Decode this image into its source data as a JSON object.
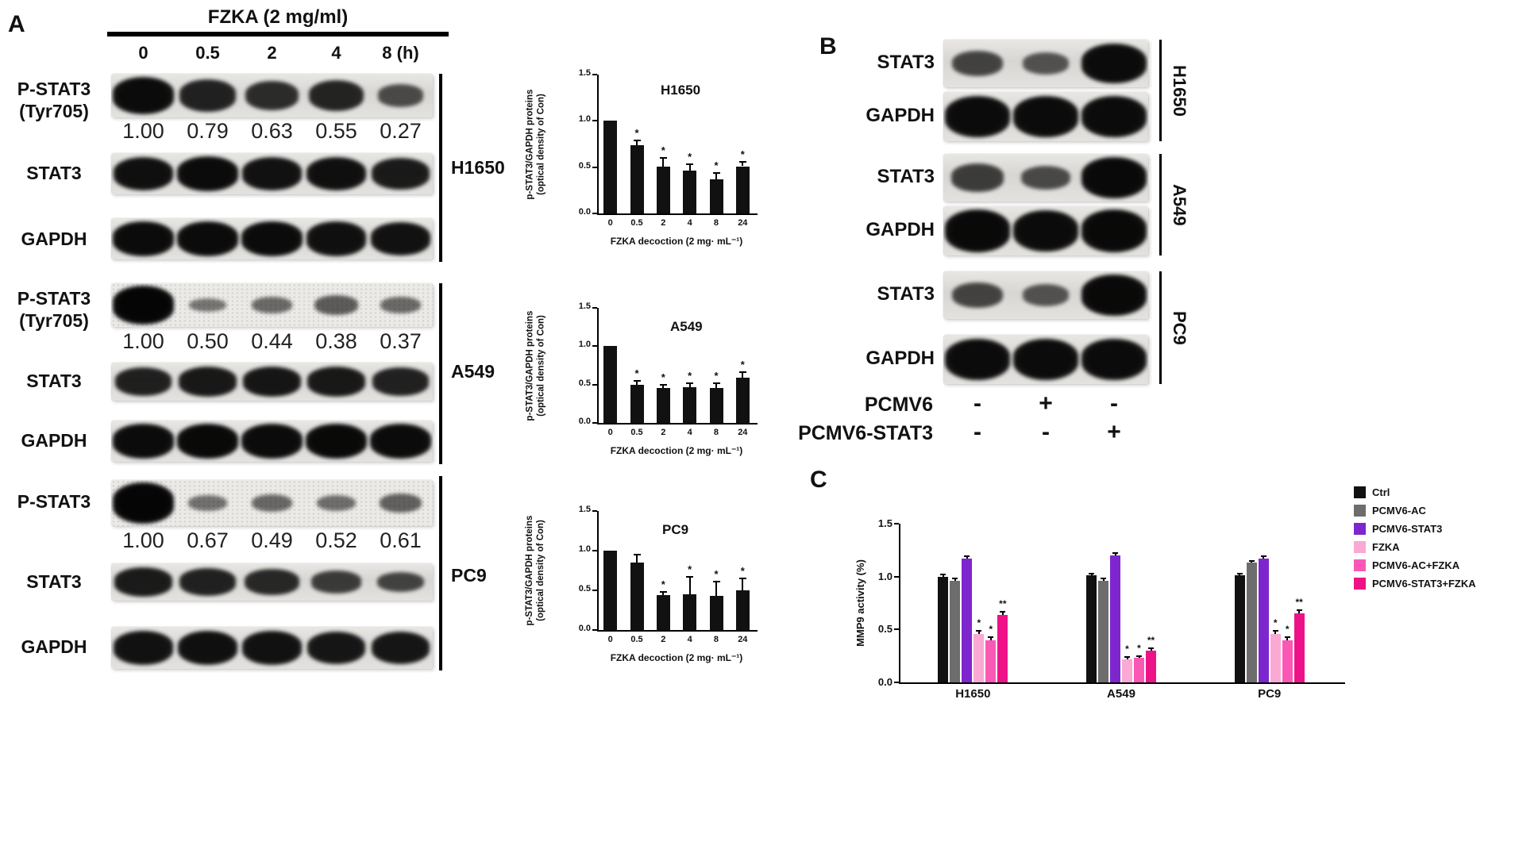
{
  "panels": {
    "a_label": "A",
    "b_label": "B",
    "c_label": "C"
  },
  "panelA": {
    "treatment_title": "FZKA (2 mg/ml)",
    "timepoints": [
      "0",
      "0.5",
      "2",
      "4",
      "8 (h)"
    ],
    "groups": [
      {
        "cell_line": "H1650",
        "pstat3_label_lines": [
          "P-STAT3",
          "(Tyr705)"
        ],
        "pstat3_bands": [
          0.95,
          0.8,
          0.72,
          0.78,
          0.5
        ],
        "pstat3_speckle": false,
        "densities": [
          "1.00",
          "0.79",
          "0.63",
          "0.55",
          "0.27"
        ],
        "stat3_label": "STAT3",
        "stat3_bands": [
          0.92,
          0.95,
          0.9,
          0.92,
          0.85
        ],
        "gapdh_label": "GAPDH",
        "gapdh_bands": [
          0.95,
          0.96,
          0.95,
          0.93,
          0.9
        ]
      },
      {
        "cell_line": "A549",
        "pstat3_label_lines": [
          "P-STAT3",
          "(Tyr705)"
        ],
        "pstat3_bands": [
          1.0,
          0.25,
          0.33,
          0.42,
          0.33
        ],
        "pstat3_speckle": true,
        "densities": [
          "1.00",
          "0.50",
          "0.44",
          "0.38",
          "0.37"
        ],
        "stat3_label": "STAT3",
        "stat3_bands": [
          0.82,
          0.86,
          0.88,
          0.86,
          0.8
        ],
        "gapdh_label": "GAPDH",
        "gapdh_bands": [
          0.95,
          0.97,
          0.96,
          0.97,
          0.96
        ]
      },
      {
        "cell_line": "PC9",
        "pstat3_label_lines": [
          "P-STAT3"
        ],
        "pstat3_bands": [
          1.0,
          0.28,
          0.34,
          0.3,
          0.38
        ],
        "pstat3_speckle": true,
        "densities": [
          "1.00",
          "0.67",
          "0.49",
          "0.52",
          "0.61"
        ],
        "stat3_label": "STAT3",
        "stat3_bands": [
          0.85,
          0.8,
          0.75,
          0.62,
          0.55
        ],
        "gapdh_label": "GAPDH",
        "gapdh_bands": [
          0.9,
          0.92,
          0.9,
          0.88,
          0.88
        ]
      }
    ]
  },
  "panelB": {
    "blot_rows": [
      {
        "label": "STAT3",
        "group": "H1650",
        "bands": [
          0.55,
          0.45,
          0.95
        ]
      },
      {
        "label": "GAPDH",
        "group": "H1650",
        "bands": [
          0.95,
          0.95,
          0.96
        ]
      },
      {
        "label": "STAT3",
        "group": "A549",
        "bands": [
          0.6,
          0.5,
          0.97
        ]
      },
      {
        "label": "GAPDH",
        "group": "A549",
        "bands": [
          0.97,
          0.96,
          0.97
        ]
      },
      {
        "label": "STAT3",
        "group": "PC9",
        "bands": [
          0.55,
          0.45,
          0.97
        ]
      },
      {
        "label": "GAPDH",
        "group": "PC9",
        "bands": [
          0.95,
          0.96,
          0.95
        ]
      }
    ],
    "cell_lines": [
      "H1650",
      "A549",
      "PC9"
    ],
    "condition_rows": [
      {
        "label": "PCMV6",
        "values": [
          "-",
          "+",
          "-"
        ]
      },
      {
        "label": "PCMV6-STAT3",
        "values": [
          "-",
          "-",
          "+"
        ]
      }
    ]
  },
  "chart_data": [
    {
      "type": "bar",
      "panel": "A",
      "title": "H1650",
      "ylabel_lines": [
        "p-STAT3/GAPDH proteins",
        "(optical density of Con)"
      ],
      "xlabel": "FZKA decoction (2 mg· mL⁻¹)",
      "categories": [
        "0",
        "0.5",
        "2",
        "4",
        "8",
        "24"
      ],
      "values": [
        1.0,
        0.74,
        0.51,
        0.46,
        0.37,
        0.51
      ],
      "errors": [
        0,
        0.05,
        0.09,
        0.07,
        0.07,
        0.05
      ],
      "sig": [
        "",
        "*",
        "*",
        "*",
        "*",
        "*"
      ],
      "ylim": [
        0,
        1.5
      ],
      "yticks": [
        0,
        0.5,
        1,
        1.5
      ],
      "bar_color": "#111111"
    },
    {
      "type": "bar",
      "panel": "A",
      "title": "A549",
      "ylabel_lines": [
        "p-STAT3/GAPDH proteins",
        "(optical density of Con)"
      ],
      "xlabel": "FZKA decoction (2 mg· mL⁻¹)",
      "categories": [
        "0",
        "0.5",
        "2",
        "4",
        "8",
        "24"
      ],
      "values": [
        1.0,
        0.5,
        0.46,
        0.47,
        0.46,
        0.59
      ],
      "errors": [
        0,
        0.05,
        0.04,
        0.05,
        0.06,
        0.07
      ],
      "sig": [
        "",
        "*",
        "*",
        "*",
        "*",
        "*"
      ],
      "ylim": [
        0,
        1.5
      ],
      "yticks": [
        0,
        0.5,
        1,
        1.5
      ],
      "bar_color": "#111111"
    },
    {
      "type": "bar",
      "panel": "A",
      "title": "PC9",
      "ylabel_lines": [
        "p-STAT3/GAPDH proteins",
        "(optical density of Con)"
      ],
      "xlabel": "FZKA decoction (2 mg· mL⁻¹)",
      "categories": [
        "0",
        "0.5",
        "2",
        "4",
        "8",
        "24"
      ],
      "values": [
        1.0,
        0.85,
        0.44,
        0.45,
        0.43,
        0.5
      ],
      "errors": [
        0,
        0.1,
        0.04,
        0.22,
        0.18,
        0.15
      ],
      "sig": [
        "",
        "",
        "*",
        "*",
        "*",
        "*"
      ],
      "ylim": [
        0,
        1.5
      ],
      "yticks": [
        0,
        0.5,
        1,
        1.5
      ],
      "bar_color": "#111111"
    },
    {
      "type": "grouped_bar",
      "panel": "C",
      "ylabel_lines": [
        "MMP9 activity (%)"
      ],
      "categories": [
        "H1650",
        "A549",
        "PC9"
      ],
      "ylim": [
        0,
        1.5
      ],
      "yticks": [
        0,
        0.5,
        1,
        1.5
      ],
      "legend_position": "right",
      "series": [
        {
          "name": "Ctrl",
          "color": "#111111",
          "values": [
            1.0,
            1.01,
            1.01
          ],
          "errors": [
            0.02,
            0.02,
            0.02
          ],
          "sig": [
            "",
            "",
            ""
          ]
        },
        {
          "name": "PCMV6-AC",
          "color": "#6d6d6d",
          "values": [
            0.96,
            0.96,
            1.13
          ],
          "errors": [
            0.02,
            0.02,
            0.02
          ],
          "sig": [
            "",
            "",
            ""
          ]
        },
        {
          "name": "PCMV6-STAT3",
          "color": "#7d26cd",
          "values": [
            1.17,
            1.2,
            1.17
          ],
          "errors": [
            0.02,
            0.02,
            0.02
          ],
          "sig": [
            "",
            "",
            ""
          ]
        },
        {
          "name": "FZKA",
          "color": "#f9a9d4",
          "values": [
            0.46,
            0.22,
            0.46
          ],
          "errors": [
            0.03,
            0.02,
            0.03
          ],
          "sig": [
            "*",
            "*",
            "*"
          ]
        },
        {
          "name": "PCMV6-AC+FZKA",
          "color": "#fa58b5",
          "values": [
            0.4,
            0.23,
            0.4
          ],
          "errors": [
            0.03,
            0.02,
            0.03
          ],
          "sig": [
            "*",
            "*",
            "*"
          ]
        },
        {
          "name": "PCMV6-STAT3+FZKA",
          "color": "#ee1289",
          "values": [
            0.64,
            0.3,
            0.65
          ],
          "errors": [
            0.03,
            0.02,
            0.03
          ],
          "sig": [
            "**",
            "**",
            "**"
          ]
        }
      ]
    }
  ]
}
